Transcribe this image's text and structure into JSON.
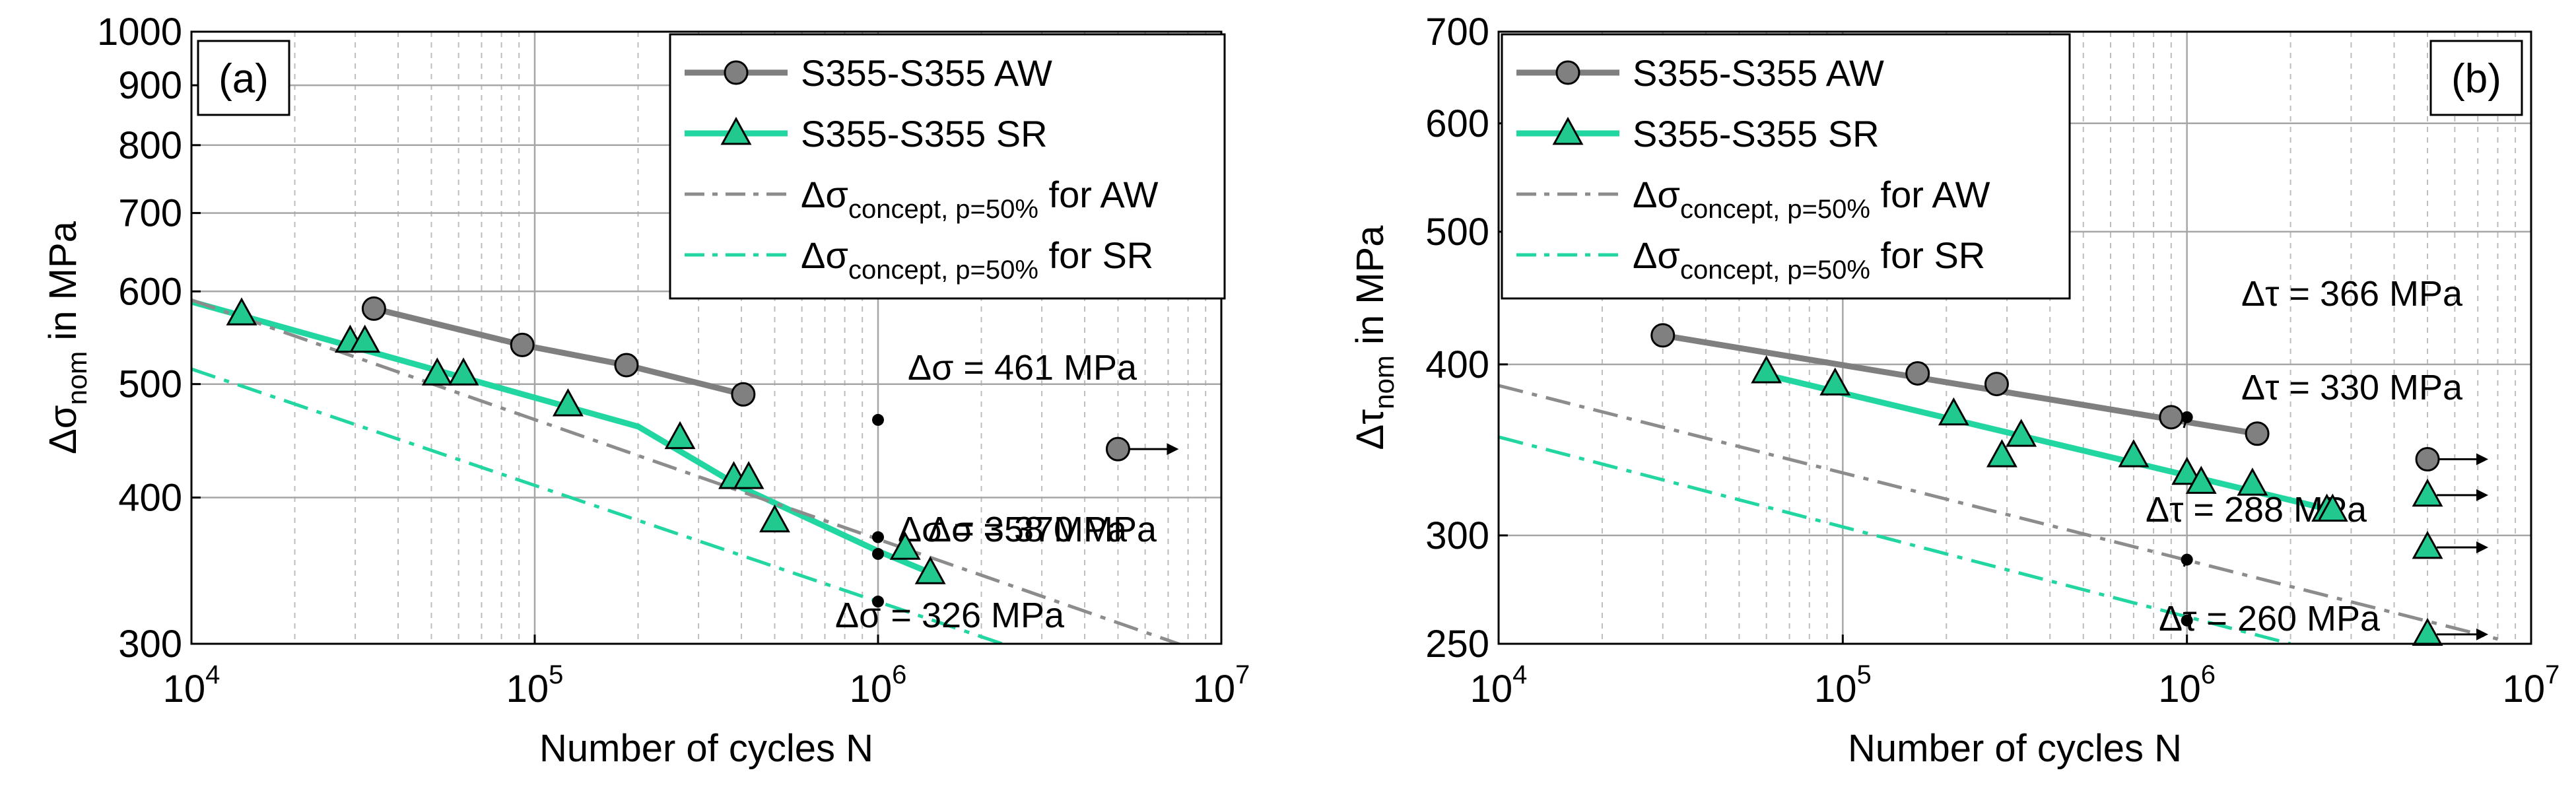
{
  "figure": {
    "panels": [
      "(a)",
      "(b)"
    ]
  },
  "chart_data": [
    {
      "type": "scatter",
      "panel_label": "(a)",
      "xscale": "log",
      "yscale": "log",
      "xlim": [
        10000,
        10000000
      ],
      "ylim": [
        300,
        1000
      ],
      "xlabel": "Number of cycles N",
      "ylabel": {
        "base": "Δσ",
        "sub": "nom",
        "rest": " in MPa"
      },
      "xticks": [
        {
          "value": 10000,
          "base": "10",
          "exp": "4"
        },
        {
          "value": 100000,
          "base": "10",
          "exp": "5"
        },
        {
          "value": 1000000,
          "base": "10",
          "exp": "6"
        },
        {
          "value": 10000000,
          "base": "10",
          "exp": "7"
        }
      ],
      "yticks": [
        {
          "value": 300,
          "label": "300"
        },
        {
          "value": 400,
          "label": "400"
        },
        {
          "value": 500,
          "label": "500"
        },
        {
          "value": 600,
          "label": "600"
        },
        {
          "value": 700,
          "label": "700"
        },
        {
          "value": 800,
          "label": "800"
        },
        {
          "value": 900,
          "label": "900"
        },
        {
          "value": 1000,
          "label": "1000"
        }
      ],
      "legend": {
        "position": "top-right",
        "entries": [
          {
            "id": "aw",
            "label": "S355-S355 AW",
            "color": "#7f7f7f",
            "marker": "circle",
            "style": "solid"
          },
          {
            "id": "sr",
            "label": "S355-S355 SR",
            "color": "#21d6a0",
            "marker": "triangle",
            "style": "solid"
          },
          {
            "id": "caw",
            "base": "Δσ",
            "sub": "concept, p=50%",
            "rest": " for AW",
            "color": "#8c8c8c",
            "style": "dashdot"
          },
          {
            "id": "csr",
            "base": "Δσ",
            "sub": "concept, p=50%",
            "rest": " for SR",
            "color": "#21d6a0",
            "style": "dashdot"
          }
        ]
      },
      "series": [
        {
          "name": "S355-S355 AW points",
          "marker": "circle",
          "color": "#808080",
          "points": [
            [
              34000,
              580
            ],
            [
              92000,
              540
            ],
            [
              185000,
              519
            ],
            [
              405000,
              490
            ]
          ]
        },
        {
          "name": "S355-S355 AW runout",
          "marker": "circle",
          "color": "#808080",
          "runout": true,
          "points": [
            [
              5000000,
              440
            ]
          ]
        },
        {
          "name": "S355-S355 SR points",
          "marker": "triangle",
          "color": "#21c98f",
          "points": [
            [
              14000,
              574
            ],
            [
              29000,
              544
            ],
            [
              32000,
              544
            ],
            [
              52000,
              510
            ],
            [
              62000,
              510
            ],
            [
              125000,
              480
            ],
            [
              265000,
              450
            ],
            [
              380000,
              416
            ],
            [
              420000,
              416
            ],
            [
              500000,
              382
            ],
            [
              1200000,
              362
            ],
            [
              1420000,
              345
            ]
          ]
        }
      ],
      "curves": [
        {
          "name": "AW mean curve",
          "color": "#7f7f7f",
          "style": "solid",
          "points": [
            [
              34000,
              580
            ],
            [
              92000,
              540
            ],
            [
              185000,
              519
            ],
            [
              405000,
              490
            ]
          ]
        },
        {
          "name": "SR mean curve",
          "color": "#21d6a0",
          "style": "solid",
          "points": [
            [
              10000,
              588
            ],
            [
              200000,
              460
            ],
            [
              400000,
              408
            ],
            [
              1000000,
              360
            ],
            [
              1420000,
              345
            ]
          ]
        },
        {
          "name": "AW concept curve",
          "color": "#8c8c8c",
          "style": "dashdot",
          "points": [
            [
              10000,
              590
            ],
            [
              8000000,
              298
            ]
          ]
        },
        {
          "name": "SR concept curve",
          "color": "#21d6a0",
          "style": "dashdot",
          "points": [
            [
              10000,
              515
            ],
            [
              2300000,
              300
            ]
          ]
        }
      ],
      "annotations": [
        {
          "text": "Δσ = 461 MPa",
          "x": 1000000,
          "y": 466
        },
        {
          "text": "Δσ = 370 MPa",
          "x": 1000000,
          "y": 370
        },
        {
          "text": "Δσ = 358 MPa",
          "x": 1000000,
          "y": 358
        },
        {
          "text": "Δσ = 326 MPa",
          "x": 1000000,
          "y": 326
        }
      ]
    },
    {
      "type": "scatter",
      "panel_label": "(b)",
      "xscale": "log",
      "yscale": "log",
      "xlim": [
        10000,
        10000000
      ],
      "ylim": [
        250,
        700
      ],
      "xlabel": "Number of cycles N",
      "ylabel": {
        "base": "Δτ",
        "sub": "nom",
        "rest": " in MPa"
      },
      "xticks": [
        {
          "value": 10000,
          "base": "10",
          "exp": "4"
        },
        {
          "value": 100000,
          "base": "10",
          "exp": "5"
        },
        {
          "value": 1000000,
          "base": "10",
          "exp": "6"
        },
        {
          "value": 10000000,
          "base": "10",
          "exp": "7"
        }
      ],
      "yticks": [
        {
          "value": 250,
          "label": "250"
        },
        {
          "value": 300,
          "label": "300"
        },
        {
          "value": 400,
          "label": "400"
        },
        {
          "value": 500,
          "label": "500"
        },
        {
          "value": 600,
          "label": "600"
        },
        {
          "value": 700,
          "label": "700"
        }
      ],
      "legend": {
        "position": "top-left",
        "entries": [
          {
            "id": "aw",
            "label": "S355-S355 AW",
            "color": "#7f7f7f",
            "marker": "circle",
            "style": "solid"
          },
          {
            "id": "sr",
            "label": "S355-S355 SR",
            "color": "#21d6a0",
            "marker": "triangle",
            "style": "solid"
          },
          {
            "id": "caw",
            "base": "Δσ",
            "sub": "concept, p=50%",
            "rest": " for AW",
            "color": "#8c8c8c",
            "style": "dashdot"
          },
          {
            "id": "csr",
            "base": "Δσ",
            "sub": "concept, p=50%",
            "rest": " for SR",
            "color": "#21d6a0",
            "style": "dashdot"
          }
        ]
      },
      "series": [
        {
          "name": "S355-S355 AW points",
          "marker": "circle",
          "color": "#808080",
          "points": [
            [
              30000,
              420
            ],
            [
              165000,
              394
            ],
            [
              280000,
              387
            ],
            [
              900000,
              366
            ],
            [
              1600000,
              356
            ]
          ]
        },
        {
          "name": "S355-S355 AW runout",
          "marker": "circle",
          "color": "#808080",
          "runout": true,
          "points": [
            [
              5000000,
              341
            ]
          ]
        },
        {
          "name": "S355-S355 SR points",
          "marker": "triangle",
          "color": "#21c98f",
          "points": [
            [
              60000,
              395
            ],
            [
              95000,
              387
            ],
            [
              210000,
              368
            ],
            [
              290000,
              343
            ],
            [
              330000,
              355
            ],
            [
              700000,
              343
            ],
            [
              1000000,
              333
            ],
            [
              1100000,
              328
            ],
            [
              1550000,
              327
            ],
            [
              2550000,
              313
            ],
            [
              2650000,
              313
            ]
          ]
        },
        {
          "name": "S355-S355 SR runouts",
          "marker": "triangle",
          "color": "#21c98f",
          "runout": true,
          "points": [
            [
              5000000,
              321
            ],
            [
              5000000,
              254
            ]
          ]
        },
        {
          "name": "Runout marker",
          "marker": "triangle",
          "color": "#21c98f",
          "runout": true,
          "points": [
            [
              5000000,
              294
            ]
          ]
        }
      ],
      "curves": [
        {
          "name": "AW mean curve",
          "color": "#7f7f7f",
          "style": "solid",
          "points": [
            [
              30000,
              420
            ],
            [
              1600000,
              356
            ]
          ]
        },
        {
          "name": "SR mean curve",
          "color": "#21d6a0",
          "style": "solid",
          "points": [
            [
              60000,
              393
            ],
            [
              2650000,
              313
            ]
          ]
        },
        {
          "name": "AW concept curve",
          "color": "#8c8c8c",
          "style": "dashdot",
          "points": [
            [
              10000,
              386
            ],
            [
              8000000,
              252
            ]
          ]
        },
        {
          "name": "SR concept curve",
          "color": "#21d6a0",
          "style": "dashdot",
          "points": [
            [
              10000,
              354
            ],
            [
              2000000,
              250
            ]
          ]
        }
      ],
      "annotations": [
        {
          "text": "Δτ = 366 MPa",
          "x": 1000000,
          "y": 366
        },
        {
          "text": "Δτ = 330 MPa",
          "x": 1000000,
          "y": 330
        },
        {
          "text": "Δτ = 288 MPa",
          "x": 1000000,
          "y": 288
        },
        {
          "text": "Δτ = 260 MPa",
          "x": 1000000,
          "y": 260
        }
      ]
    }
  ]
}
